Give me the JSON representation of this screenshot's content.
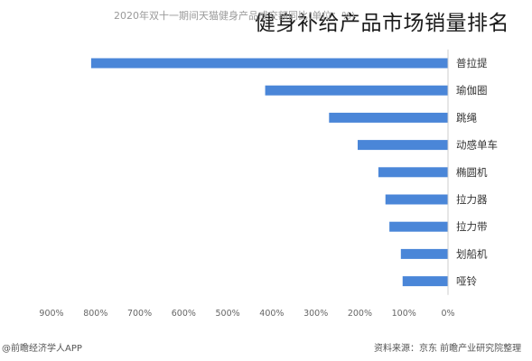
{
  "overlay_title": "健身补给产品市场销量排名",
  "footer": {
    "source": "资料来源：京东 前瞻产业研究院整理",
    "brand": "@前瞻经济学人APP"
  },
  "colors": {
    "bar": "#4a86d8",
    "axis": "#cccccc"
  },
  "chart_data": {
    "type": "bar",
    "orientation": "horizontal",
    "title": "",
    "subtitle": "2020年双十一期间天猫健身产品成交额同比(单位：%)",
    "xlabel": "",
    "ylabel": "",
    "categories": [
      "普拉提",
      "瑜伽圈",
      "跳绳",
      "动感单车",
      "椭圆机",
      "拉力器",
      "拉力带",
      "划船机",
      "哑铃"
    ],
    "values": [
      810,
      415,
      270,
      205,
      158,
      142,
      133,
      107,
      103
    ],
    "xlim": [
      0,
      900
    ],
    "xticks": [
      0,
      100,
      200,
      300,
      400,
      500,
      600,
      700,
      800,
      900
    ],
    "tick_labels": [
      "0%",
      "100%",
      "200%",
      "300%",
      "400%",
      "500%",
      "600%",
      "700%",
      "800%",
      "900%"
    ],
    "x_axis_reversed": true,
    "grid": false,
    "legend": "none"
  }
}
